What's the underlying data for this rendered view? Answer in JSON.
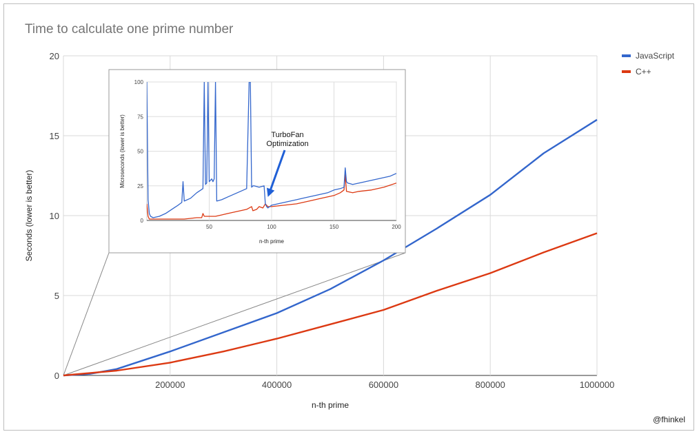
{
  "chart": {
    "title": "Time to calculate one prime number",
    "credit": "@fhinkel"
  },
  "chart_data": [
    {
      "type": "line",
      "title": "Time to calculate one prime number",
      "xlabel": "n-th prime",
      "ylabel": "Seconds (lower is better)",
      "xlim": [
        0,
        1000000
      ],
      "ylim": [
        0,
        20
      ],
      "xticks": [
        200000,
        400000,
        600000,
        800000,
        1000000
      ],
      "yticks": [
        0,
        5,
        10,
        15,
        20
      ],
      "grid": true,
      "legend_position": "top-right",
      "series": [
        {
          "name": "JavaScript",
          "color": "#3366cc",
          "x": [
            0,
            50000,
            100000,
            200000,
            300000,
            400000,
            500000,
            600000,
            700000,
            800000,
            900000,
            1000000
          ],
          "y": [
            0,
            0.1,
            0.4,
            1.5,
            2.7,
            3.9,
            5.4,
            7.2,
            9.2,
            11.3,
            13.9,
            16.0
          ]
        },
        {
          "name": "C++",
          "color": "#dc3912",
          "x": [
            0,
            100000,
            200000,
            300000,
            400000,
            500000,
            600000,
            700000,
            800000,
            900000,
            1000000
          ],
          "y": [
            0,
            0.3,
            0.8,
            1.5,
            2.3,
            3.2,
            4.1,
            5.3,
            6.4,
            7.7,
            8.9
          ]
        }
      ]
    },
    {
      "type": "line",
      "xlabel": "n-th prime",
      "ylabel": "Microseconds (lower is better)",
      "xlim": [
        0,
        200
      ],
      "ylim": [
        0,
        100
      ],
      "xticks": [
        50,
        100,
        150,
        200
      ],
      "yticks": [
        0,
        25,
        50,
        75,
        100
      ],
      "grid": true,
      "annotation": {
        "line1": "TurboFan",
        "line2": "Optimization",
        "arrow_to": [
          97,
          17
        ]
      },
      "series": [
        {
          "name": "JavaScript",
          "color": "#3366cc",
          "x": [
            0,
            1,
            2,
            3,
            5,
            10,
            15,
            20,
            25,
            28,
            29,
            30,
            35,
            40,
            45,
            46,
            47,
            48,
            49,
            50,
            51,
            52,
            53,
            54,
            55,
            56,
            60,
            65,
            70,
            75,
            80,
            82,
            83,
            84,
            85,
            86,
            90,
            94,
            95,
            96,
            97,
            100,
            105,
            110,
            115,
            120,
            125,
            130,
            135,
            140,
            145,
            150,
            155,
            158,
            159,
            160,
            161,
            165,
            170,
            175,
            180,
            185,
            190,
            195,
            200
          ],
          "y": [
            100,
            15,
            5,
            3,
            2,
            3,
            5,
            8,
            11,
            13,
            28,
            14,
            16,
            20,
            23,
            100,
            26,
            27,
            100,
            28,
            29,
            30,
            28,
            30,
            100,
            14,
            15,
            17,
            19,
            21,
            23,
            100,
            100,
            24,
            25,
            25,
            24,
            25,
            12,
            10,
            9,
            11,
            12,
            13,
            14,
            15,
            16,
            17,
            18,
            19,
            20,
            22,
            23,
            24,
            38,
            28,
            27,
            26,
            27,
            28,
            29,
            30,
            31,
            32,
            34
          ]
        },
        {
          "name": "C++",
          "color": "#dc3912",
          "x": [
            0,
            1,
            2,
            3,
            10,
            20,
            30,
            40,
            44,
            45,
            46,
            50,
            55,
            60,
            65,
            70,
            75,
            80,
            84,
            85,
            88,
            90,
            93,
            95,
            97,
            100,
            110,
            120,
            130,
            140,
            150,
            155,
            158,
            159,
            160,
            165,
            170,
            180,
            190,
            200
          ],
          "y": [
            12,
            3,
            1,
            1,
            1,
            1,
            1,
            2,
            2,
            5,
            3,
            3,
            3,
            4,
            5,
            6,
            7,
            8,
            10,
            7,
            8,
            10,
            9,
            12,
            10,
            10,
            11,
            12,
            14,
            16,
            18,
            20,
            22,
            33,
            21,
            20,
            21,
            22,
            24,
            27
          ]
        }
      ]
    }
  ]
}
